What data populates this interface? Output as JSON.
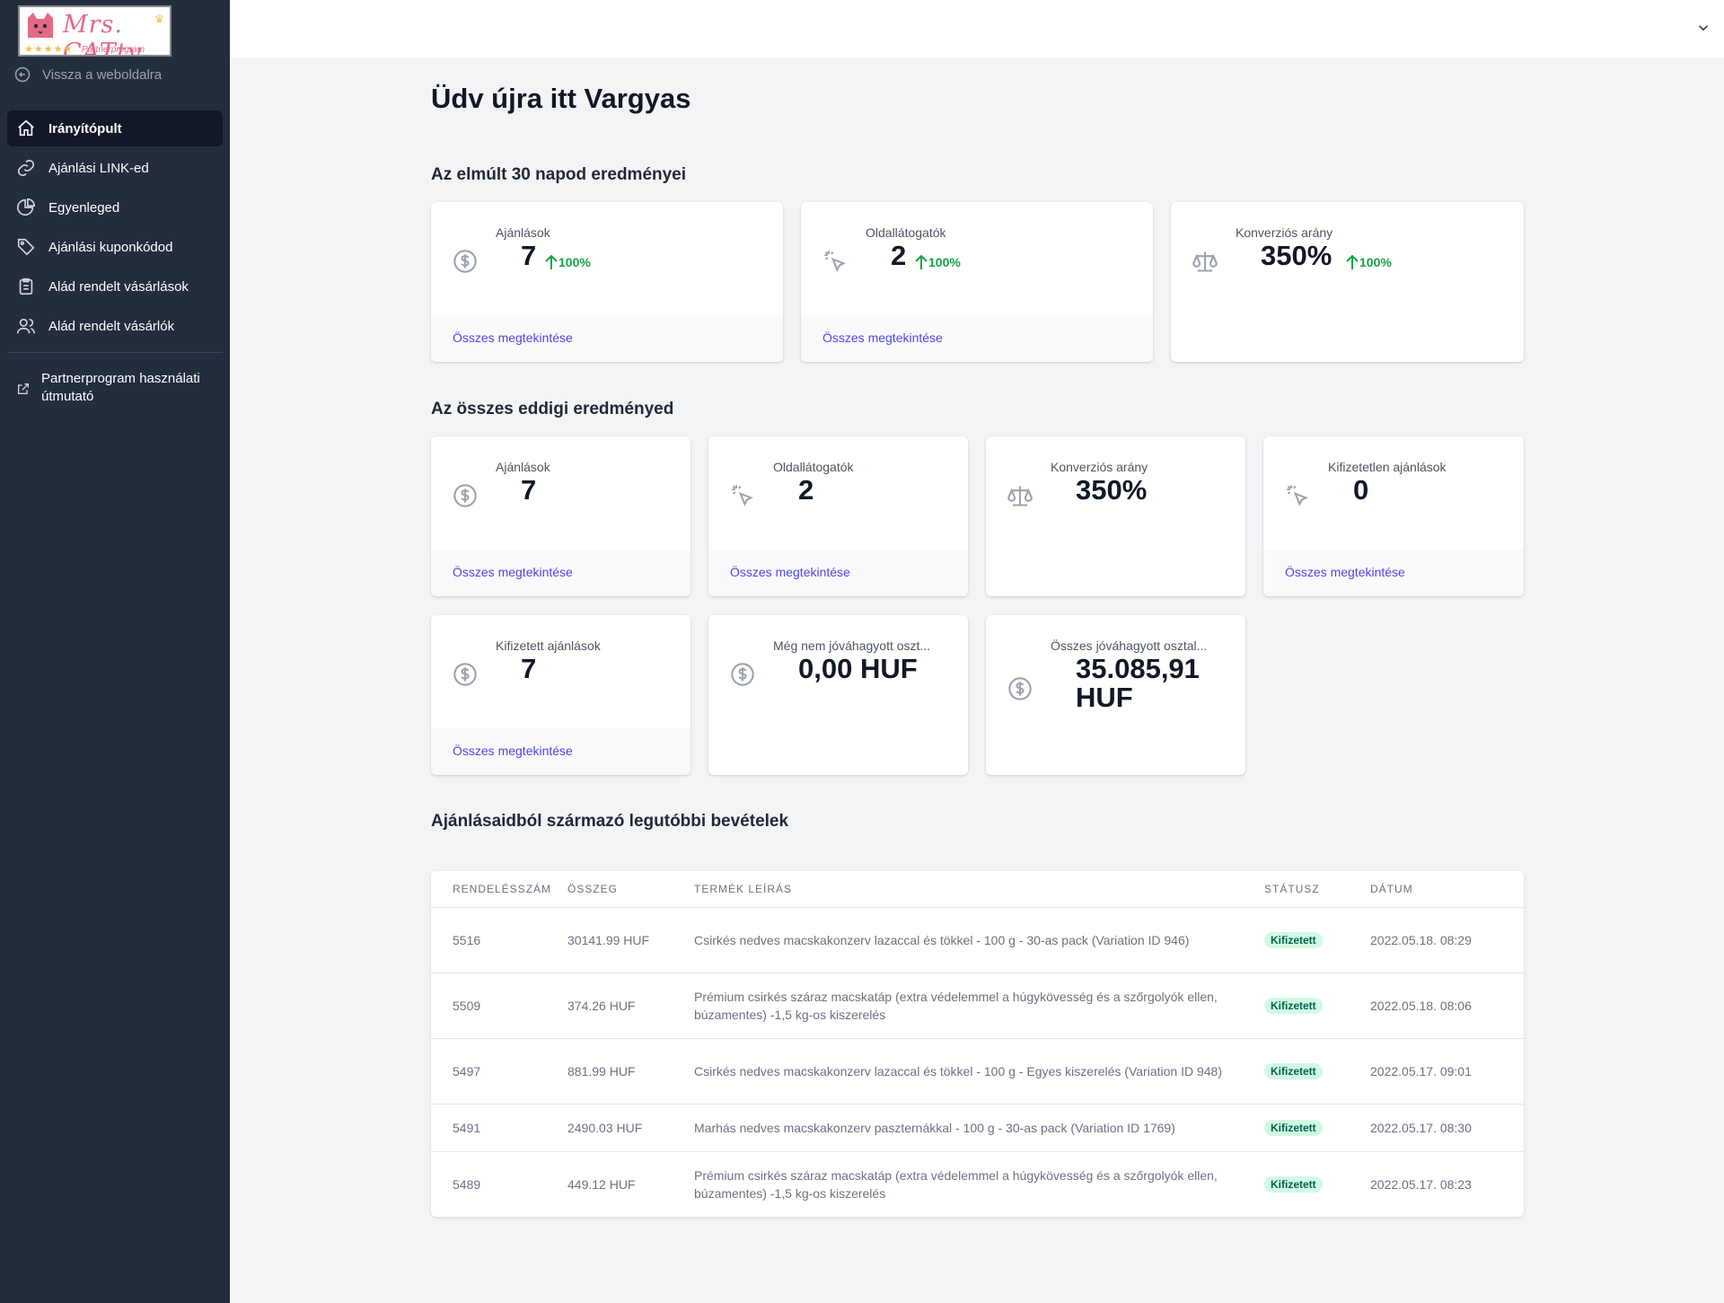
{
  "app": {
    "logo_title": "Mrs. CATty",
    "logo_subtitle": "Partnerprogram",
    "logo_stars": "★★★★★",
    "back_link": "Vissza a weboldalra"
  },
  "nav": {
    "items": [
      {
        "label": "Irányítópult",
        "icon": "home-icon",
        "active": true
      },
      {
        "label": "Ajánlási LINK-ed",
        "icon": "link-icon"
      },
      {
        "label": "Egyenleged",
        "icon": "pie-chart-icon"
      },
      {
        "label": "Ajánlási kuponkódod",
        "icon": "tag-icon"
      },
      {
        "label": "Alád rendelt vásárlások",
        "icon": "clipboard-icon"
      },
      {
        "label": "Alád rendelt vásárlók",
        "icon": "users-icon"
      }
    ],
    "external": {
      "label": "Partnerprogram használati útmutató",
      "icon": "external-link-icon"
    }
  },
  "page": {
    "title": "Üdv újra itt Vargyas"
  },
  "last30": {
    "title": "Az elmúlt 30 napod eredményei",
    "cards": [
      {
        "label": "Ajánlások",
        "value": "7",
        "change": "100%",
        "link": "Összes megtekintése",
        "icon": "dollar-icon"
      },
      {
        "label": "Oldallátogatók",
        "value": "2",
        "change": "100%",
        "link": "Összes megtekintése",
        "icon": "cursor-click-icon"
      },
      {
        "label": "Konverziós arány",
        "value": "350%",
        "change": "100%",
        "icon": "scale-icon"
      }
    ]
  },
  "alltime": {
    "title": "Az összes eddigi eredményed",
    "cards": [
      {
        "label": "Ajánlások",
        "value": "7",
        "link": "Összes megtekintése",
        "icon": "dollar-icon"
      },
      {
        "label": "Oldallátogatók",
        "value": "2",
        "link": "Összes megtekintése",
        "icon": "cursor-click-icon"
      },
      {
        "label": "Konverziós arány",
        "value": "350%",
        "icon": "scale-icon"
      },
      {
        "label": "Kifizetetlen ajánlások",
        "value": "0",
        "link": "Összes megtekintése",
        "icon": "cursor-click-icon"
      },
      {
        "label": "Kifizetett ajánlások",
        "value": "7",
        "link": "Összes megtekintése",
        "icon": "dollar-icon"
      },
      {
        "label": "Még nem jóváhagyott oszt...",
        "value": "0,00 HUF",
        "icon": "dollar-icon"
      },
      {
        "label": "Összes jóváhagyott osztal...",
        "value_line1": "35.085,91",
        "value_line2": "HUF",
        "icon": "dollar-icon"
      }
    ]
  },
  "earnings": {
    "title": "Ajánlásaidból származó legutóbbi bevételek",
    "columns": [
      "RENDELÉSSZÁM",
      "ÖSSZEG",
      "TERMÉK LEÍRÁS",
      "STÁTUSZ",
      "DÁTUM"
    ],
    "rows": [
      {
        "order": "5516",
        "amount": "30141.99 HUF",
        "desc": "Csirkés nedves macskakonzerv lazaccal és tökkel - 100 g - 30-as pack (Variation ID 946)",
        "status": "Kifizetett",
        "date": "2022.05.18. 08:29"
      },
      {
        "order": "5509",
        "amount": "374.26 HUF",
        "desc": "Prémium csirkés száraz macskatáp (extra védelemmel a húgykövesség és a szőrgolyók ellen, búzamentes) -1,5 kg-os kiszerelés",
        "status": "Kifizetett",
        "date": "2022.05.18. 08:06"
      },
      {
        "order": "5497",
        "amount": "881.99 HUF",
        "desc": "Csirkés nedves macskakonzerv lazaccal és tökkel - 100 g - Egyes kiszerelés (Variation ID 948)",
        "status": "Kifizetett",
        "date": "2022.05.17. 09:01"
      },
      {
        "order": "5491",
        "amount": "2490.03 HUF",
        "desc": "Marhás nedves macskakonzerv paszternákkal - 100 g - 30-as pack (Variation ID 1769)",
        "status": "Kifizetett",
        "date": "2022.05.17. 08:30"
      },
      {
        "order": "5489",
        "amount": "449.12 HUF",
        "desc": "Prémium csirkés száraz macskatáp (extra védelemmel a húgykövesség és a szőrgolyók ellen, búzamentes) -1,5 kg-os kiszerelés",
        "status": "Kifizetett",
        "date": "2022.05.17. 08:23"
      }
    ]
  },
  "colors": {
    "sidebar": "#242d3e",
    "active_nav": "#111827",
    "link": "#4f46e5",
    "positive": "#16a34a",
    "badge_bg": "#d1fae5",
    "badge_text": "#065f46"
  }
}
